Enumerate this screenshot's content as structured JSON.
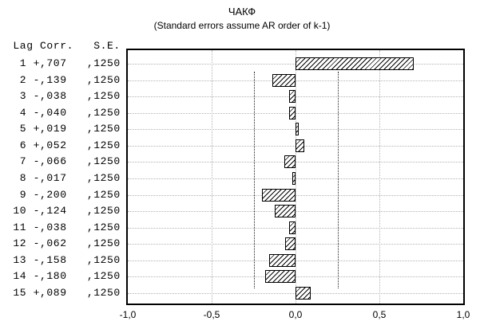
{
  "chart_data": {
    "type": "bar",
    "orientation": "horizontal",
    "title": "ЧАКФ",
    "subtitle": "(Standard errors assume AR order of k-1)",
    "table_header": {
      "lag": "Lag",
      "corr": "Corr.",
      "se": "S.E."
    },
    "xlim": [
      -1.0,
      1.0
    ],
    "gridlines_x": [
      -0.5,
      0.0,
      0.5
    ],
    "confidence_limits": [
      -0.25,
      0.25
    ],
    "grid": "dotted",
    "legend": "none",
    "x_ticks": [
      {
        "label": "-1,0",
        "value": -1.0
      },
      {
        "label": "-0,5",
        "value": -0.5
      },
      {
        "label": "0,0",
        "value": 0.0
      },
      {
        "label": "0,5",
        "value": 0.5
      },
      {
        "label": "1,0",
        "value": 1.0
      }
    ],
    "rows": [
      {
        "lag": "1",
        "corr_label": "+,707",
        "se_label": ",1250",
        "value": 0.707
      },
      {
        "lag": "2",
        "corr_label": "-,139",
        "se_label": ",1250",
        "value": -0.139
      },
      {
        "lag": "3",
        "corr_label": "-,038",
        "se_label": ",1250",
        "value": -0.038
      },
      {
        "lag": "4",
        "corr_label": "-,040",
        "se_label": ",1250",
        "value": -0.04
      },
      {
        "lag": "5",
        "corr_label": "+,019",
        "se_label": ",1250",
        "value": 0.019
      },
      {
        "lag": "6",
        "corr_label": "+,052",
        "se_label": ",1250",
        "value": 0.052
      },
      {
        "lag": "7",
        "corr_label": "-,066",
        "se_label": ",1250",
        "value": -0.066
      },
      {
        "lag": "8",
        "corr_label": "-,017",
        "se_label": ",1250",
        "value": -0.017
      },
      {
        "lag": "9",
        "corr_label": "-,200",
        "se_label": ",1250",
        "value": -0.2
      },
      {
        "lag": "10",
        "corr_label": "-,124",
        "se_label": ",1250",
        "value": -0.124
      },
      {
        "lag": "11",
        "corr_label": "-,038",
        "se_label": ",1250",
        "value": -0.038
      },
      {
        "lag": "12",
        "corr_label": "-,062",
        "se_label": ",1250",
        "value": -0.062
      },
      {
        "lag": "13",
        "corr_label": "-,158",
        "se_label": ",1250",
        "value": -0.158
      },
      {
        "lag": "14",
        "corr_label": "-,180",
        "se_label": ",1250",
        "value": -0.18
      },
      {
        "lag": "15",
        "corr_label": "+,089",
        "se_label": ",1250",
        "value": 0.089
      }
    ],
    "colors": {
      "bar_fill": "#ffffff",
      "bar_hatch": "#000000",
      "gridline": "#b3b3b3",
      "confidence_line": "#222222",
      "axis": "#000000",
      "background": "#ffffff"
    }
  }
}
